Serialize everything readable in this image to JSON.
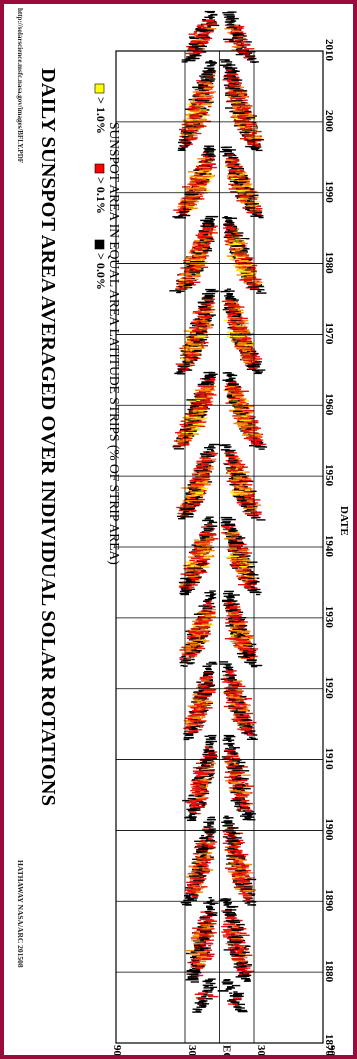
{
  "chart_data": {
    "type": "heatmap",
    "title": "DAILY SUNSPOT AREA AVERAGED OVER INDIVIDUAL SOLAR ROTATIONS",
    "subtitle": "SUNSPOT AREA IN EQUAL AREA LATITUDE STRIPS (% OF STRIP AREA)",
    "url": "http://solarscience.msfc.nasa.gov/images/BFLY.PDF",
    "credit": "HATHAWAY NASA/ARC 201508",
    "xlabel": "DATE",
    "ylabel": "",
    "xlim": [
      1870,
      2010
    ],
    "ylim": [
      -90,
      90
    ],
    "x_ticks": [
      "1870",
      "1880",
      "1890",
      "1900",
      "1910",
      "1920",
      "1930",
      "1940",
      "1950",
      "1960",
      "1970",
      "1980",
      "1990",
      "2000",
      "2010"
    ],
    "y_ticks": [
      "90S",
      "30S",
      "EQ",
      "30N",
      "90N"
    ],
    "grid": true,
    "legend": [
      {
        "label": "> 0.0%",
        "color": "#000000"
      },
      {
        "label": "> 0.1%",
        "color": "#ff0000"
      },
      {
        "label": "> 1.0%",
        "color": "#ffff00"
      }
    ],
    "cycles": [
      {
        "start": 1874.5,
        "end": 1879.0,
        "max_lat": 22,
        "intensity": 0.25
      },
      {
        "start": 1878.8,
        "end": 1890.5,
        "max_lat": 28,
        "intensity": 0.55
      },
      {
        "start": 1889.5,
        "end": 1902.0,
        "max_lat": 32,
        "intensity": 0.65
      },
      {
        "start": 1901.5,
        "end": 1913.5,
        "max_lat": 30,
        "intensity": 0.55
      },
      {
        "start": 1913.0,
        "end": 1923.8,
        "max_lat": 32,
        "intensity": 0.75
      },
      {
        "start": 1923.3,
        "end": 1933.8,
        "max_lat": 35,
        "intensity": 0.8
      },
      {
        "start": 1933.5,
        "end": 1944.3,
        "max_lat": 36,
        "intensity": 0.9
      },
      {
        "start": 1944.0,
        "end": 1954.5,
        "max_lat": 38,
        "intensity": 1.0
      },
      {
        "start": 1954.0,
        "end": 1964.8,
        "max_lat": 42,
        "intensity": 1.15
      },
      {
        "start": 1964.5,
        "end": 1976.5,
        "max_lat": 38,
        "intensity": 1.0
      },
      {
        "start": 1976.0,
        "end": 1986.8,
        "max_lat": 40,
        "intensity": 1.1
      },
      {
        "start": 1986.5,
        "end": 1996.6,
        "max_lat": 40,
        "intensity": 1.05
      },
      {
        "start": 1996.0,
        "end": 2008.8,
        "max_lat": 38,
        "intensity": 0.95
      },
      {
        "start": 2008.5,
        "end": 2015.6,
        "max_lat": 32,
        "intensity": 0.6
      }
    ]
  }
}
